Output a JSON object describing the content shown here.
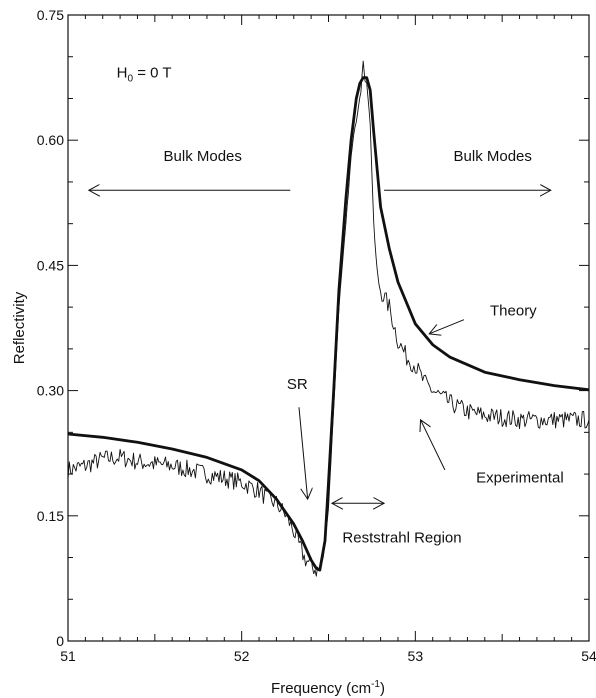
{
  "chart_data": {
    "type": "line",
    "title": "",
    "xlabel": "Frequency (cm",
    "xlabel_sup": "-1",
    "xlabel_close": ")",
    "ylabel": "Reflectivity",
    "xlim": [
      51,
      54
    ],
    "ylim": [
      0,
      0.75
    ],
    "x_ticks": [
      51,
      52,
      53,
      54
    ],
    "x_tick_labels": [
      "51",
      "52",
      "53",
      "54"
    ],
    "y_ticks": [
      0,
      0.15,
      0.3,
      0.45,
      0.6,
      0.75
    ],
    "y_tick_labels": [
      "0",
      "0.15",
      "0.30",
      "0.45",
      "0.60",
      "0.75"
    ],
    "grid": false,
    "legend": "none",
    "series": [
      {
        "name": "Theory",
        "style": "thick",
        "x": [
          51.0,
          51.2,
          51.4,
          51.6,
          51.8,
          52.0,
          52.1,
          52.2,
          52.3,
          52.35,
          52.4,
          52.43,
          52.45,
          52.48,
          52.5,
          52.53,
          52.56,
          52.6,
          52.63,
          52.66,
          52.68,
          52.7,
          52.72,
          52.74,
          52.76,
          52.8,
          52.85,
          52.9,
          53.0,
          53.1,
          53.2,
          53.4,
          53.6,
          53.8,
          54.0
        ],
        "y": [
          0.248,
          0.244,
          0.238,
          0.23,
          0.22,
          0.205,
          0.192,
          0.17,
          0.14,
          0.12,
          0.097,
          0.087,
          0.085,
          0.12,
          0.19,
          0.3,
          0.42,
          0.53,
          0.6,
          0.65,
          0.668,
          0.675,
          0.675,
          0.66,
          0.61,
          0.52,
          0.47,
          0.43,
          0.38,
          0.355,
          0.34,
          0.322,
          0.313,
          0.306,
          0.301
        ]
      },
      {
        "name": "Experimental",
        "style": "thin-noisy",
        "x": [
          51.0,
          51.1,
          51.2,
          51.3,
          51.4,
          51.5,
          51.6,
          51.7,
          51.8,
          51.9,
          52.0,
          52.05,
          52.1,
          52.15,
          52.2,
          52.25,
          52.3,
          52.33,
          52.36,
          52.4,
          52.43,
          52.45,
          52.47,
          52.5,
          52.53,
          52.56,
          52.6,
          52.63,
          52.66,
          52.68,
          52.7,
          52.72,
          52.74,
          52.76,
          52.78,
          52.8,
          52.85,
          52.9,
          52.95,
          53.0,
          53.05,
          53.1,
          53.2,
          53.3,
          53.4,
          53.5,
          53.6,
          53.7,
          53.8,
          53.9,
          54.0
        ],
        "y": [
          0.205,
          0.21,
          0.218,
          0.22,
          0.215,
          0.212,
          0.21,
          0.205,
          0.2,
          0.195,
          0.19,
          0.185,
          0.18,
          0.17,
          0.165,
          0.152,
          0.132,
          0.115,
          0.1,
          0.09,
          0.085,
          0.085,
          0.1,
          0.16,
          0.28,
          0.4,
          0.5,
          0.58,
          0.63,
          0.66,
          0.685,
          0.67,
          0.62,
          0.5,
          0.44,
          0.42,
          0.4,
          0.36,
          0.34,
          0.33,
          0.31,
          0.3,
          0.285,
          0.275,
          0.27,
          0.268,
          0.265,
          0.265,
          0.265,
          0.265,
          0.265
        ]
      }
    ],
    "annotations": {
      "field": {
        "label_main": "H",
        "label_sub": "0",
        "label_rest": " = 0 T",
        "x": 51.28,
        "y": 0.675
      },
      "bulk_left": {
        "label": "Bulk Modes",
        "label_x": 51.55,
        "label_y": 0.575,
        "arrow_from": [
          52.28,
          0.54
        ],
        "arrow_to": [
          51.12,
          0.54
        ]
      },
      "bulk_right": {
        "label": "Bulk Modes",
        "label_x": 53.22,
        "label_y": 0.575,
        "arrow_from": [
          52.82,
          0.54
        ],
        "arrow_to": [
          53.78,
          0.54
        ]
      },
      "theory": {
        "label": "Theory",
        "label_x": 53.43,
        "label_y": 0.39,
        "arrow_from": [
          53.28,
          0.385
        ],
        "arrow_to": [
          53.08,
          0.368
        ]
      },
      "experimental": {
        "label": "Experimental",
        "label_x": 53.35,
        "label_y": 0.19,
        "arrow_from": [
          53.17,
          0.205
        ],
        "arrow_to": [
          53.03,
          0.265
        ]
      },
      "sr": {
        "label": "SR",
        "label_x": 52.26,
        "label_y": 0.302,
        "arrow_from": [
          52.33,
          0.28
        ],
        "arrow_to": [
          52.38,
          0.17
        ]
      },
      "reststrahl": {
        "label": "Reststrahl Region",
        "label_x": 52.58,
        "label_y": 0.118,
        "arrow_from": [
          52.52,
          0.165
        ],
        "arrow_to": [
          52.82,
          0.165
        ]
      }
    }
  }
}
